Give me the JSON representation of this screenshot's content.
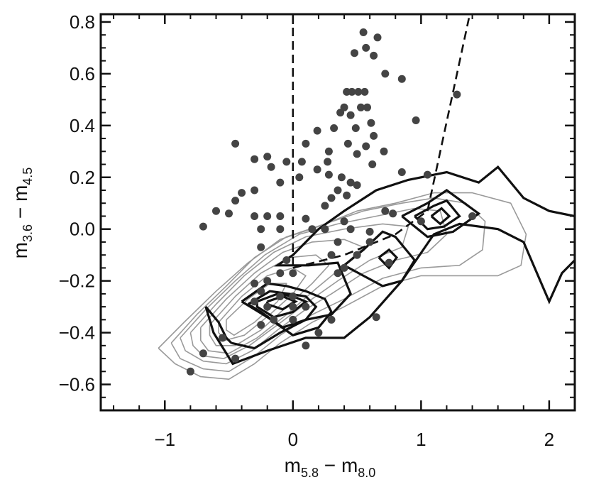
{
  "chart_data": {
    "type": "scatter",
    "title": "",
    "xlabel": {
      "main": "m",
      "sub1": "5.8",
      "sep": " − ",
      "main2": "m",
      "sub2": "8.0"
    },
    "ylabel": {
      "main": "m",
      "sub1": "3.6",
      "sep": " − ",
      "main2": "m",
      "sub2": "4.5"
    },
    "xlim": [
      -1.5,
      2.2
    ],
    "ylim": [
      -0.7,
      0.83
    ],
    "x_ticks": [
      {
        "value": -1,
        "label": "−1"
      },
      {
        "value": 0,
        "label": "0"
      },
      {
        "value": 1,
        "label": "1"
      },
      {
        "value": 2,
        "label": "2"
      }
    ],
    "y_ticks": [
      {
        "value": 0.8,
        "label": "0.8"
      },
      {
        "value": 0.6,
        "label": "0.6"
      },
      {
        "value": 0.4,
        "label": "0.4"
      },
      {
        "value": 0.2,
        "label": "0.2"
      },
      {
        "value": 0.0,
        "label": "0.0"
      },
      {
        "value": -0.2,
        "label": "−0.2"
      },
      {
        "value": -0.4,
        "label": "−0.4"
      },
      {
        "value": -0.6,
        "label": "−0.6"
      }
    ],
    "points": [
      [
        0.55,
        0.76
      ],
      [
        0.66,
        0.74
      ],
      [
        0.57,
        0.7
      ],
      [
        0.48,
        0.68
      ],
      [
        0.63,
        0.67
      ],
      [
        0.72,
        0.6
      ],
      [
        0.85,
        0.58
      ],
      [
        0.42,
        0.53
      ],
      [
        0.46,
        0.53
      ],
      [
        0.51,
        0.53
      ],
      [
        0.56,
        0.53
      ],
      [
        1.28,
        0.52
      ],
      [
        0.4,
        0.47
      ],
      [
        0.53,
        0.47
      ],
      [
        0.58,
        0.47
      ],
      [
        0.37,
        0.45
      ],
      [
        0.45,
        0.44
      ],
      [
        0.61,
        0.41
      ],
      [
        0.19,
        0.38
      ],
      [
        0.32,
        0.39
      ],
      [
        0.49,
        0.39
      ],
      [
        0.63,
        0.36
      ],
      [
        0.96,
        0.42
      ],
      [
        0.1,
        0.33
      ],
      [
        0.43,
        0.33
      ],
      [
        0.57,
        0.32
      ],
      [
        0.71,
        0.3
      ],
      [
        0.28,
        0.3
      ],
      [
        0.5,
        0.29
      ],
      [
        0.62,
        0.25
      ],
      [
        0.27,
        0.26
      ],
      [
        -0.45,
        0.33
      ],
      [
        0.07,
        0.26
      ],
      [
        -0.05,
        0.26
      ],
      [
        -0.2,
        0.28
      ],
      [
        -0.17,
        0.24
      ],
      [
        -0.3,
        0.27
      ],
      [
        0.19,
        0.23
      ],
      [
        0.28,
        0.21
      ],
      [
        0.38,
        0.2
      ],
      [
        0.45,
        0.18
      ],
      [
        0.5,
        0.17
      ],
      [
        0.35,
        0.15
      ],
      [
        0.42,
        0.13
      ],
      [
        0.05,
        0.2
      ],
      [
        -0.1,
        0.18
      ],
      [
        0.3,
        0.12
      ],
      [
        0.85,
        0.22
      ],
      [
        1.05,
        0.21
      ],
      [
        -0.3,
        0.15
      ],
      [
        -0.4,
        0.14
      ],
      [
        -0.45,
        0.11
      ],
      [
        -0.6,
        0.07
      ],
      [
        -0.5,
        0.06
      ],
      [
        -0.3,
        0.05
      ],
      [
        -0.2,
        0.05
      ],
      [
        -0.1,
        0.05
      ],
      [
        0.1,
        0.04
      ],
      [
        0.25,
        0.09
      ],
      [
        0.4,
        0.03
      ],
      [
        0.45,
        0.0
      ],
      [
        0.15,
        0.0
      ],
      [
        0.25,
        0.0
      ],
      [
        0.72,
        0.07
      ],
      [
        0.78,
        0.06
      ],
      [
        1.0,
        0.03
      ],
      [
        1.4,
        0.05
      ],
      [
        -0.7,
        0.01
      ],
      [
        -0.25,
        0.0
      ],
      [
        -0.1,
        0.0
      ],
      [
        0.6,
        -0.01
      ],
      [
        -0.25,
        -0.07
      ],
      [
        0.35,
        -0.05
      ],
      [
        0.3,
        -0.1
      ],
      [
        0.5,
        -0.1
      ],
      [
        0.4,
        -0.15
      ],
      [
        0.35,
        -0.17
      ],
      [
        0.6,
        -0.05
      ],
      [
        -0.05,
        -0.12
      ],
      [
        0.0,
        -0.17
      ],
      [
        -0.1,
        -0.17
      ],
      [
        -0.2,
        -0.2
      ],
      [
        -0.3,
        -0.21
      ],
      [
        -0.25,
        -0.24
      ],
      [
        -0.1,
        -0.26
      ],
      [
        0.0,
        -0.26
      ],
      [
        -0.2,
        -0.3
      ],
      [
        -0.3,
        -0.28
      ],
      [
        0.0,
        -0.3
      ],
      [
        0.1,
        -0.3
      ],
      [
        -0.15,
        -0.35
      ],
      [
        -0.25,
        -0.37
      ],
      [
        0.65,
        -0.34
      ],
      [
        -0.55,
        -0.42
      ],
      [
        -0.45,
        -0.5
      ],
      [
        -0.7,
        -0.48
      ],
      [
        -0.8,
        -0.55
      ],
      [
        0.1,
        -0.45
      ],
      [
        0.2,
        -0.4
      ],
      [
        0.3,
        -0.35
      ],
      [
        0.0,
        -0.35
      ],
      [
        0.75,
        -0.13
      ]
    ],
    "contours_thin": [
      [
        [
          -1.05,
          -0.46
        ],
        [
          -0.85,
          -0.36
        ],
        [
          -0.6,
          -0.24
        ],
        [
          -0.35,
          -0.13
        ],
        [
          -0.1,
          -0.04
        ],
        [
          0.2,
          0.01
        ],
        [
          0.5,
          0.07
        ],
        [
          0.8,
          0.1
        ],
        [
          1.1,
          0.14
        ],
        [
          1.4,
          0.14
        ],
        [
          1.7,
          0.1
        ],
        [
          1.82,
          -0.02
        ],
        [
          1.78,
          -0.14
        ],
        [
          1.6,
          -0.18
        ],
        [
          1.3,
          -0.18
        ],
        [
          1.0,
          -0.18
        ],
        [
          0.7,
          -0.22
        ],
        [
          0.4,
          -0.3
        ],
        [
          0.15,
          -0.36
        ],
        [
          -0.1,
          -0.44
        ],
        [
          -0.3,
          -0.52
        ],
        [
          -0.5,
          -0.58
        ],
        [
          -0.72,
          -0.57
        ],
        [
          -0.92,
          -0.52
        ],
        [
          -1.05,
          -0.46
        ]
      ],
      [
        [
          -0.95,
          -0.44
        ],
        [
          -0.75,
          -0.33
        ],
        [
          -0.52,
          -0.22
        ],
        [
          -0.3,
          -0.11
        ],
        [
          -0.05,
          -0.03
        ],
        [
          0.25,
          0.02
        ],
        [
          0.55,
          0.07
        ],
        [
          0.85,
          0.1
        ],
        [
          1.1,
          0.12
        ],
        [
          1.35,
          0.1
        ],
        [
          1.5,
          0.03
        ],
        [
          1.48,
          -0.08
        ],
        [
          1.3,
          -0.14
        ],
        [
          1.0,
          -0.15
        ],
        [
          0.7,
          -0.19
        ],
        [
          0.4,
          -0.27
        ],
        [
          0.15,
          -0.33
        ],
        [
          -0.1,
          -0.41
        ],
        [
          -0.3,
          -0.49
        ],
        [
          -0.5,
          -0.55
        ],
        [
          -0.7,
          -0.54
        ],
        [
          -0.88,
          -0.5
        ],
        [
          -0.95,
          -0.44
        ]
      ],
      [
        [
          -0.88,
          -0.42
        ],
        [
          -0.68,
          -0.31
        ],
        [
          -0.45,
          -0.2
        ],
        [
          -0.22,
          -0.1
        ],
        [
          0.05,
          -0.02
        ],
        [
          0.35,
          0.02
        ],
        [
          0.65,
          0.05
        ],
        [
          0.95,
          0.08
        ],
        [
          1.15,
          0.07
        ],
        [
          1.2,
          -0.02
        ],
        [
          1.05,
          -0.09
        ],
        [
          0.8,
          -0.12
        ],
        [
          0.55,
          -0.17
        ],
        [
          0.3,
          -0.25
        ],
        [
          0.1,
          -0.31
        ],
        [
          -0.12,
          -0.39
        ],
        [
          -0.32,
          -0.47
        ],
        [
          -0.52,
          -0.52
        ],
        [
          -0.7,
          -0.51
        ],
        [
          -0.84,
          -0.47
        ],
        [
          -0.88,
          -0.42
        ]
      ],
      [
        [
          -0.8,
          -0.4
        ],
        [
          -0.6,
          -0.29
        ],
        [
          -0.38,
          -0.18
        ],
        [
          -0.15,
          -0.09
        ],
        [
          0.1,
          -0.03
        ],
        [
          0.4,
          0.0
        ],
        [
          0.7,
          0.02
        ],
        [
          0.9,
          0.01
        ],
        [
          0.85,
          -0.07
        ],
        [
          0.6,
          -0.12
        ],
        [
          0.35,
          -0.2
        ],
        [
          0.12,
          -0.28
        ],
        [
          -0.12,
          -0.37
        ],
        [
          -0.34,
          -0.45
        ],
        [
          -0.54,
          -0.5
        ],
        [
          -0.7,
          -0.49
        ],
        [
          -0.78,
          -0.45
        ],
        [
          -0.8,
          -0.4
        ]
      ],
      [
        [
          -0.72,
          -0.38
        ],
        [
          -0.52,
          -0.27
        ],
        [
          -0.3,
          -0.17
        ],
        [
          -0.08,
          -0.09
        ],
        [
          0.15,
          -0.05
        ],
        [
          0.4,
          -0.04
        ],
        [
          0.55,
          -0.07
        ],
        [
          0.4,
          -0.14
        ],
        [
          0.18,
          -0.23
        ],
        [
          -0.05,
          -0.33
        ],
        [
          -0.28,
          -0.42
        ],
        [
          -0.5,
          -0.48
        ],
        [
          -0.66,
          -0.47
        ],
        [
          -0.72,
          -0.43
        ],
        [
          -0.72,
          -0.38
        ]
      ],
      [
        [
          -0.65,
          -0.37
        ],
        [
          -0.45,
          -0.26
        ],
        [
          -0.25,
          -0.17
        ],
        [
          -0.03,
          -0.11
        ],
        [
          0.18,
          -0.1
        ],
        [
          0.28,
          -0.14
        ],
        [
          0.15,
          -0.21
        ],
        [
          -0.05,
          -0.3
        ],
        [
          -0.25,
          -0.39
        ],
        [
          -0.45,
          -0.45
        ],
        [
          -0.6,
          -0.45
        ],
        [
          -0.65,
          -0.41
        ],
        [
          -0.65,
          -0.37
        ]
      ],
      [
        [
          -0.58,
          -0.36
        ],
        [
          -0.4,
          -0.26
        ],
        [
          -0.2,
          -0.18
        ],
        [
          0.0,
          -0.15
        ],
        [
          0.1,
          -0.18
        ],
        [
          0.0,
          -0.25
        ],
        [
          -0.18,
          -0.33
        ],
        [
          -0.38,
          -0.41
        ],
        [
          -0.53,
          -0.43
        ],
        [
          -0.58,
          -0.4
        ],
        [
          -0.58,
          -0.36
        ]
      ],
      [
        [
          -0.52,
          -0.35
        ],
        [
          -0.35,
          -0.27
        ],
        [
          -0.18,
          -0.21
        ],
        [
          -0.05,
          -0.21
        ],
        [
          -0.12,
          -0.28
        ],
        [
          -0.3,
          -0.36
        ],
        [
          -0.46,
          -0.41
        ],
        [
          -0.52,
          -0.39
        ],
        [
          -0.52,
          -0.35
        ]
      ]
    ],
    "contours_thick": [
      [
        [
          -0.48,
          -0.44
        ],
        [
          -0.52,
          -0.42
        ],
        [
          -0.58,
          -0.36
        ],
        [
          -0.68,
          -0.3
        ],
        [
          -0.62,
          -0.4
        ],
        [
          -0.47,
          -0.52
        ],
        [
          -0.2,
          -0.47
        ],
        [
          0.1,
          -0.42
        ],
        [
          0.4,
          -0.42
        ],
        [
          0.6,
          -0.34
        ],
        [
          0.85,
          -0.2
        ],
        [
          1.1,
          -0.02
        ],
        [
          1.3,
          0.02
        ],
        [
          1.6,
          0.0
        ],
        [
          1.8,
          -0.05
        ],
        [
          2.0,
          -0.28
        ],
        [
          2.1,
          -0.17
        ],
        [
          2.2,
          -0.12
        ],
        [
          2.2,
          0.05
        ],
        [
          2.0,
          0.07
        ],
        [
          1.8,
          0.12
        ],
        [
          1.6,
          0.24
        ],
        [
          1.45,
          0.18
        ],
        [
          1.2,
          0.22
        ],
        [
          0.9,
          0.19
        ],
        [
          0.65,
          0.15
        ],
        [
          0.4,
          0.07
        ],
        [
          0.2,
          0.0
        ],
        [
          0.0,
          -0.1
        ],
        [
          -0.12,
          -0.14
        ],
        [
          0.12,
          -0.14
        ],
        [
          0.35,
          -0.13
        ],
        [
          0.45,
          -0.25
        ],
        [
          0.3,
          -0.33
        ],
        [
          0.1,
          -0.35
        ],
        [
          -0.1,
          -0.4
        ],
        [
          -0.3,
          -0.46
        ],
        [
          -0.48,
          -0.44
        ]
      ],
      [
        [
          -0.4,
          -0.28
        ],
        [
          -0.2,
          -0.21
        ],
        [
          -0.05,
          -0.22
        ],
        [
          0.1,
          -0.24
        ],
        [
          0.25,
          -0.27
        ],
        [
          0.3,
          -0.32
        ],
        [
          0.2,
          -0.38
        ],
        [
          0.0,
          -0.41
        ],
        [
          -0.2,
          -0.34
        ],
        [
          -0.4,
          -0.28
        ]
      ],
      [
        [
          -0.35,
          -0.29
        ],
        [
          -0.18,
          -0.24
        ],
        [
          -0.03,
          -0.25
        ],
        [
          0.1,
          -0.26
        ],
        [
          0.18,
          -0.3
        ],
        [
          0.1,
          -0.35
        ],
        [
          -0.08,
          -0.38
        ],
        [
          -0.25,
          -0.32
        ],
        [
          -0.35,
          -0.29
        ]
      ],
      [
        [
          -0.28,
          -0.28
        ],
        [
          -0.12,
          -0.25
        ],
        [
          0.0,
          -0.26
        ],
        [
          0.1,
          -0.28
        ],
        [
          0.0,
          -0.32
        ],
        [
          -0.15,
          -0.34
        ],
        [
          -0.28,
          -0.3
        ],
        [
          -0.28,
          -0.28
        ]
      ],
      [
        [
          -0.2,
          -0.28
        ],
        [
          -0.08,
          -0.26
        ],
        [
          0.02,
          -0.28
        ],
        [
          -0.08,
          -0.31
        ],
        [
          -0.2,
          -0.29
        ],
        [
          -0.2,
          -0.28
        ]
      ],
      [
        [
          0.4,
          -0.14
        ],
        [
          0.55,
          -0.08
        ],
        [
          0.7,
          -0.01
        ],
        [
          0.8,
          -0.03
        ],
        [
          0.95,
          -0.12
        ],
        [
          0.85,
          -0.2
        ],
        [
          0.7,
          -0.22
        ],
        [
          0.55,
          -0.18
        ],
        [
          0.4,
          -0.14
        ]
      ],
      [
        [
          0.67,
          -0.11
        ],
        [
          0.75,
          -0.08
        ],
        [
          0.81,
          -0.11
        ],
        [
          0.75,
          -0.15
        ],
        [
          0.67,
          -0.11
        ]
      ],
      [
        [
          0.85,
          0.05
        ],
        [
          1.05,
          0.1
        ],
        [
          1.2,
          0.15
        ],
        [
          1.45,
          0.06
        ],
        [
          1.25,
          -0.01
        ],
        [
          1.05,
          -0.03
        ],
        [
          0.85,
          0.05
        ]
      ],
      [
        [
          0.95,
          0.05
        ],
        [
          1.1,
          0.09
        ],
        [
          1.2,
          0.11
        ],
        [
          1.3,
          0.05
        ],
        [
          1.18,
          0.01
        ],
        [
          1.05,
          0.0
        ],
        [
          0.95,
          0.05
        ]
      ],
      [
        [
          1.08,
          0.05
        ],
        [
          1.16,
          0.08
        ],
        [
          1.22,
          0.05
        ],
        [
          1.15,
          0.02
        ],
        [
          1.08,
          0.05
        ]
      ]
    ],
    "dashed_lines": [
      [
        [
          0.0,
          0.83
        ],
        [
          0.0,
          -0.15
        ]
      ],
      [
        [
          0.0,
          -0.15
        ],
        [
          0.4,
          -0.1
        ],
        [
          0.8,
          -0.02
        ],
        [
          1.05,
          0.07
        ]
      ],
      [
        [
          1.05,
          0.07
        ],
        [
          1.38,
          0.83
        ]
      ]
    ],
    "colors": {
      "points": "#444444",
      "contours_thin": "#9a9a9a",
      "contours_thick": "#111111",
      "axes": "#111111"
    }
  }
}
